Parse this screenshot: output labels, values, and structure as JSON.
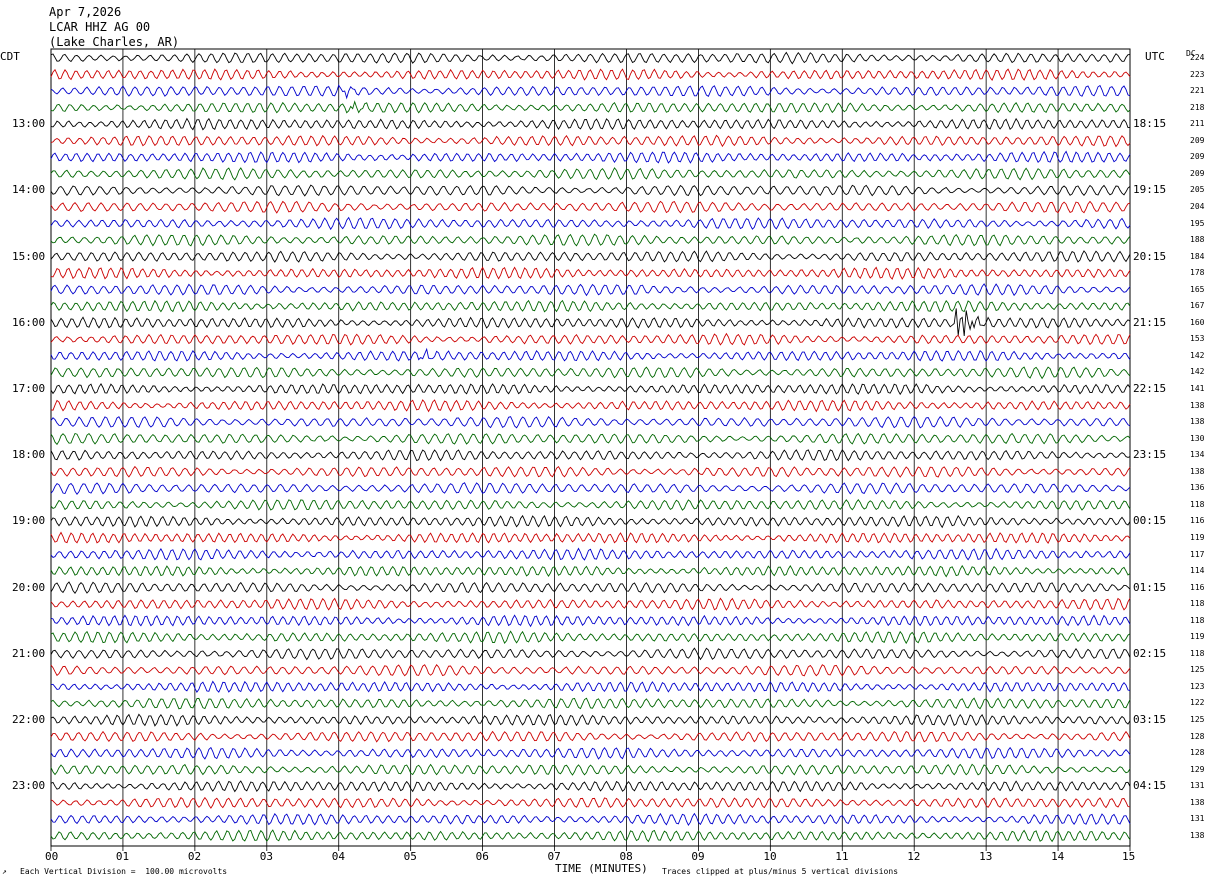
{
  "header": {
    "date": "Apr 7,2026",
    "station": "LCAR HHZ AG 00",
    "location": "(Lake Charles, AR)"
  },
  "left_axis_label": "CDT",
  "right_axis_label": "UTC",
  "dc_label": "DC",
  "footer": {
    "scale_note": "Each Vertical Division =  100.00 microvolts",
    "clip_note": "Traces clipped at plus/minus 5 vertical divisions"
  },
  "colors": {
    "trace_cycle": [
      "#000000",
      "#cc0000",
      "#0000cc",
      "#006600"
    ],
    "grid": "#000000"
  },
  "chart_data": {
    "type": "line",
    "title": "",
    "xlabel": "TIME (MINUTES)",
    "xlim": [
      0,
      15
    ],
    "x_ticks": [
      "00",
      "01",
      "02",
      "03",
      "04",
      "05",
      "06",
      "07",
      "08",
      "09",
      "10",
      "11",
      "12",
      "13",
      "14",
      "15"
    ],
    "trace_count": 48,
    "trace_interval_minutes": 15,
    "left_hour_labels": [
      "13:00",
      "14:00",
      "15:00",
      "16:00",
      "17:00",
      "18:00",
      "19:00",
      "20:00",
      "21:00",
      "22:00",
      "23:00"
    ],
    "right_hour_labels": [
      "18:15",
      "19:15",
      "20:15",
      "21:15",
      "22:15",
      "23:15",
      "00:15",
      "01:15",
      "02:15",
      "03:15",
      "04:15"
    ],
    "dc_offsets": [
      "224",
      "223",
      "221",
      "218",
      "211",
      "209",
      "209",
      "209",
      "205",
      "204",
      "195",
      "188",
      "184",
      "178",
      "165",
      "167",
      "160",
      "153",
      "142",
      "142",
      "141",
      "138",
      "138",
      "130",
      "134",
      "138",
      "136",
      "118",
      "116",
      "119",
      "117",
      "114",
      "116",
      "118",
      "118",
      "119",
      "118",
      "125",
      "123",
      "122",
      "125",
      "128",
      "128",
      "129",
      "131",
      "138",
      "131",
      "138"
    ],
    "events": [
      {
        "trace": 16,
        "minute": 12.65,
        "description_amp": "large"
      },
      {
        "trace": 3,
        "minute": 4.2,
        "description_amp": "small"
      },
      {
        "trace": 2,
        "minute": 4.1,
        "description_amp": "small"
      },
      {
        "trace": 18,
        "minute": 5.2,
        "description_amp": "small"
      }
    ]
  }
}
